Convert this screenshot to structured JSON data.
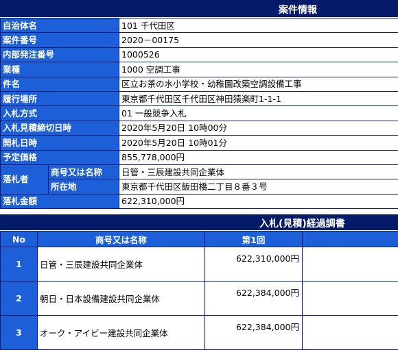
{
  "case_info": {
    "title": "案件情報",
    "rows": [
      {
        "label": "自治体名",
        "value": "101 千代田区"
      },
      {
        "label": "案件番号",
        "value": "2020－00175"
      },
      {
        "label": "内部発注番号",
        "value": "1000526"
      },
      {
        "label": "業種",
        "value": "1000 空調工事"
      },
      {
        "label": "件名",
        "value": "区立お茶の水小学校・幼稚園改築空調設備工事"
      },
      {
        "label": "履行場所",
        "value": "東京都千代田区千代田区神田猿楽町1-1-1"
      },
      {
        "label": "入札方式",
        "value": "01 一般競争入札"
      },
      {
        "label": "入札見積締切日時",
        "value": "2020年5月20日 10時00分"
      },
      {
        "label": "開札日時",
        "value": "2020年5月20日 10時01分"
      },
      {
        "label": "予定価格",
        "value": "855,778,000円"
      }
    ],
    "winner": {
      "label": "落札者",
      "name_label": "商号又は名称",
      "name_value": "日管・三辰建設共同企業体",
      "addr_label": "所在地",
      "addr_value": "東京都千代田区飯田橋二丁目８番３号"
    },
    "winning_amount": {
      "label": "落札金額",
      "value": "622,310,000円"
    }
  },
  "bid_progress": {
    "title": "入札(見積)経過調書",
    "headers": {
      "no": "No",
      "name": "商号又は名称",
      "round1": "第1回"
    },
    "rows": [
      {
        "no": "1",
        "name": "日管・三辰建設共同企業体",
        "round1": "622,310,000円"
      },
      {
        "no": "2",
        "name": "朝日・日本設備建設共同企業体",
        "round1": "622,384,000円"
      },
      {
        "no": "3",
        "name": "オーク・アイビー建設共同企業体",
        "round1": "622,384,000円"
      }
    ]
  }
}
